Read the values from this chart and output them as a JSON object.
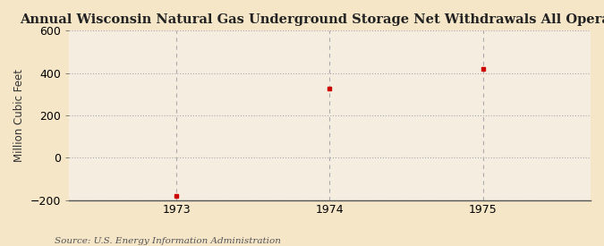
{
  "title": "Annual Wisconsin Natural Gas Underground Storage Net Withdrawals All Operators",
  "ylabel": "Million Cubic Feet",
  "source": "Source: U.S. Energy Information Administration",
  "years": [
    1973,
    1974,
    1975
  ],
  "values": [
    -180,
    325,
    420
  ],
  "ylim": [
    -200,
    600
  ],
  "yticks": [
    -200,
    0,
    200,
    400,
    600
  ],
  "xlim": [
    1972.3,
    1975.7
  ],
  "background_color": "#f5e6c8",
  "plot_bg_color": "#f5ede0",
  "marker_color": "#cc0000",
  "grid_color": "#aaaaaa",
  "spine_color": "#555555",
  "title_fontsize": 10.5,
  "label_fontsize": 8.5,
  "tick_fontsize": 9,
  "source_fontsize": 7.5
}
